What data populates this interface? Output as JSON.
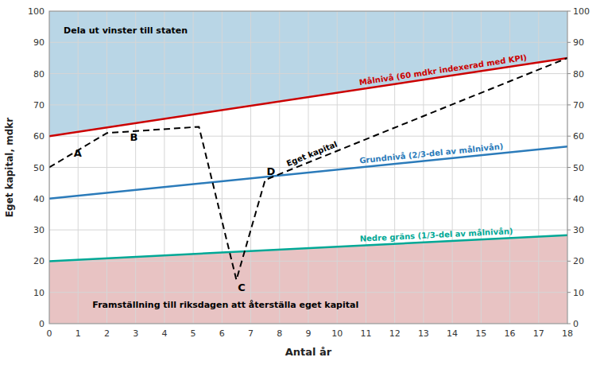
{
  "chart_data": {
    "type": "line",
    "xlabel": "Antal år",
    "ylabel": "Eget kapital, mdkr",
    "xlim": [
      0,
      18
    ],
    "ylim": [
      0,
      100
    ],
    "xticks": [
      0,
      1,
      2,
      3,
      4,
      5,
      6,
      7,
      8,
      9,
      10,
      11,
      12,
      13,
      14,
      15,
      16,
      17,
      18
    ],
    "yticks": [
      0,
      10,
      20,
      30,
      40,
      50,
      60,
      70,
      80,
      90,
      100
    ],
    "y2lim": [
      0,
      100
    ],
    "y2ticks": [
      0,
      10,
      20,
      30,
      40,
      50,
      60,
      70,
      80,
      90,
      100
    ],
    "grid": true,
    "series": [
      {
        "name": "Målnivå (60 mdkr indexerad med KPI)",
        "color": "#cc0000",
        "x": [
          0,
          18
        ],
        "values": [
          60,
          85
        ]
      },
      {
        "name": "Grundnivå (2/3-del av målnivån)",
        "color": "#2b7bba",
        "x": [
          0,
          18
        ],
        "values": [
          40,
          56.67
        ]
      },
      {
        "name": "Nedre gräns (1/3-del av målnivån)",
        "color": "#00a896",
        "x": [
          0,
          18
        ],
        "values": [
          20,
          28.33
        ]
      },
      {
        "name": "Eget kapital",
        "color": "#000000",
        "line_style": "dashed",
        "x": [
          0,
          2.0,
          5.2,
          6.5,
          7.5,
          18
        ],
        "values": [
          50,
          61,
          63,
          14,
          46,
          85
        ]
      }
    ],
    "annotations": [
      {
        "text": "Dela ut vinster till staten",
        "x": 0.5,
        "y": 93
      },
      {
        "text": "Framställning till riksdagen att återställa eget kapital",
        "x": 1.5,
        "y": 5.0
      },
      {
        "text": "A",
        "x": 0.85,
        "y": 53.5
      },
      {
        "text": "B",
        "x": 2.8,
        "y": 58.5
      },
      {
        "text": "C",
        "x": 6.55,
        "y": 10.5
      },
      {
        "text": "D",
        "x": 7.55,
        "y": 47.5
      }
    ]
  }
}
